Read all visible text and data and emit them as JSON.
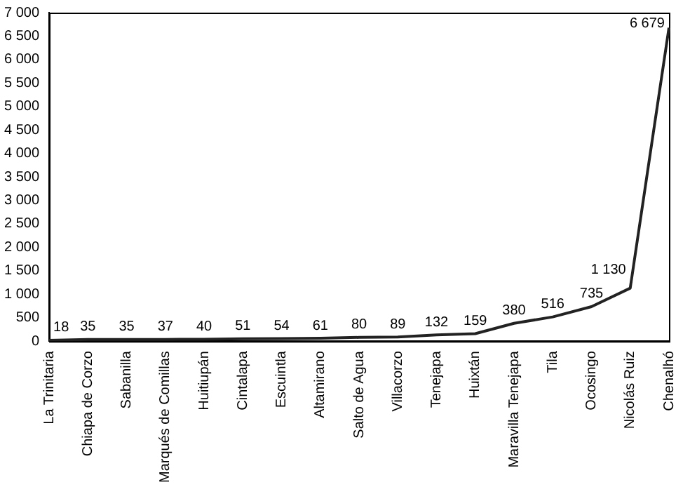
{
  "chart_data": {
    "type": "line",
    "categories": [
      "La Trinitaria",
      "Chiapa de Corzo",
      "Sabanilla",
      "Marqués de Comillas",
      "Huitiupán",
      "Cintalapa",
      "Escuintla",
      "Altamirano",
      "Salto de Agua",
      "Villacorzo",
      "Tenejapa",
      "Huixtán",
      "Maravilla Tenejapa",
      "Tila",
      "Ocosingo",
      "Nicolás Ruiz",
      "Chenalhó"
    ],
    "series": [
      {
        "color": "#222222",
        "values": [
          18,
          35,
          35,
          37,
          40,
          51,
          54,
          61,
          80,
          89,
          132,
          159,
          380,
          516,
          735,
          1130,
          6679
        ]
      }
    ],
    "value_labels": [
      "18",
      "35",
      "35",
      "37",
      "40",
      "51",
      "54",
      "61",
      "80",
      "89",
      "132",
      "159",
      "380",
      "516",
      "735",
      "1 130",
      "6 679"
    ],
    "ylim": [
      0,
      7000
    ],
    "yticks": [
      0,
      500,
      {
        "value": 1000,
        "label": "1 000"
      },
      {
        "value": 1500,
        "label": "1 500"
      },
      {
        "value": 2000,
        "label": "2 000"
      },
      {
        "value": 2500,
        "label": "2 500"
      },
      {
        "value": 3000,
        "label": "3 000"
      },
      {
        "value": 3500,
        "label": "3 500"
      },
      {
        "value": 4000,
        "label": "4 000"
      },
      {
        "value": 4500,
        "label": "4 500"
      },
      {
        "value": 5000,
        "label": "5 000"
      },
      {
        "value": 5500,
        "label": "5 500"
      },
      {
        "value": 6000,
        "label": "6 000"
      },
      {
        "value": 6500,
        "label": "6 500"
      },
      {
        "value": 7000,
        "label": "7 000"
      }
    ],
    "grid": false,
    "legend": false,
    "marker": "none",
    "line_style": "solid"
  }
}
